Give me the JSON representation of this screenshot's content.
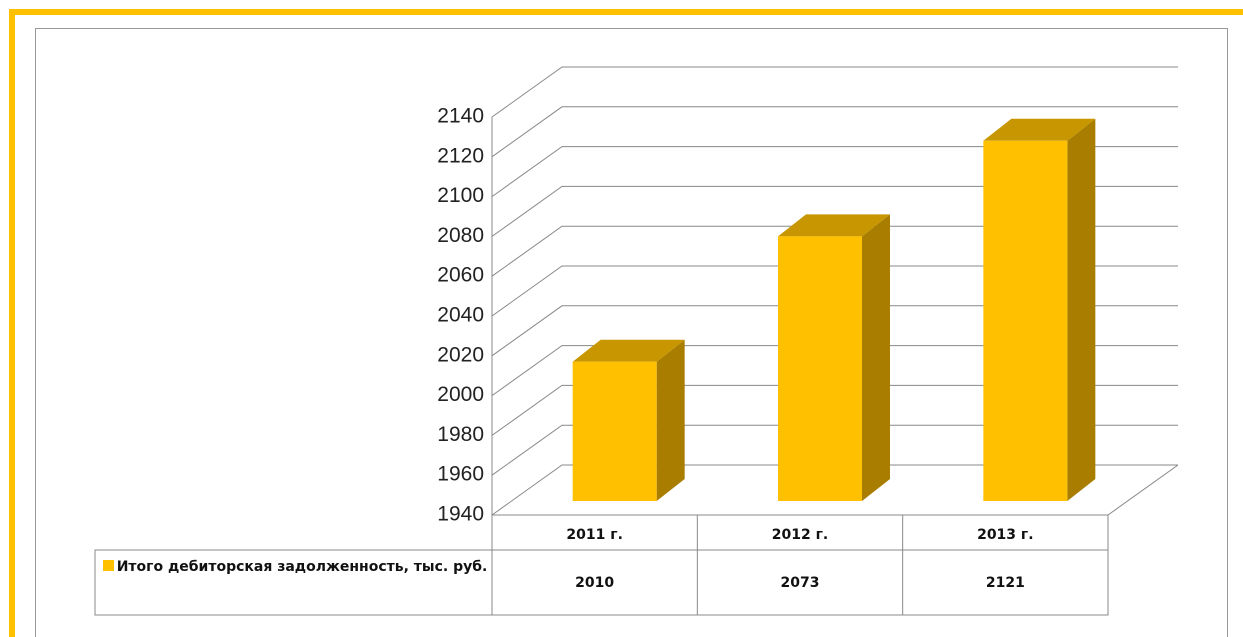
{
  "chart_data": {
    "type": "bar3d",
    "categories": [
      "2011 г.",
      "2012 г.",
      "2013 г."
    ],
    "series": [
      {
        "name": "Итого дебиторская задолженность, тыс. руб.",
        "color": "#FFC000",
        "values": [
          2010,
          2073,
          2121
        ]
      }
    ],
    "ylim": [
      1940,
      2140
    ],
    "yticks": [
      1940,
      1960,
      1980,
      2000,
      2020,
      2040,
      2060,
      2080,
      2100,
      2120,
      2140
    ],
    "grid": true
  }
}
